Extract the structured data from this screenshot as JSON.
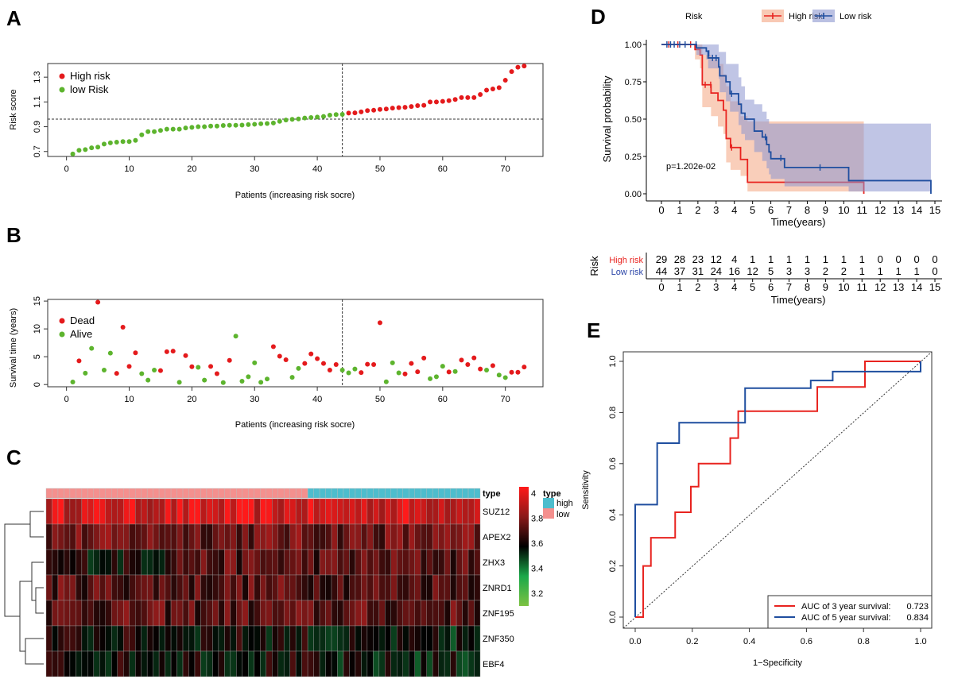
{
  "panels": {
    "a": "A",
    "b": "B",
    "c": "C",
    "d": "D",
    "e": "E"
  },
  "chart_data": [
    {
      "panel": "A",
      "type": "scatter",
      "xlabel": "Patients (increasing risk socre)",
      "ylabel": "Risk score",
      "xticks": [
        0,
        10,
        20,
        30,
        40,
        50,
        60,
        70
      ],
      "yticks": [
        0.7,
        0.9,
        1.1,
        1.3
      ],
      "xlim": [
        -3,
        76
      ],
      "ylim": [
        0.66,
        1.41
      ],
      "cutoff_patient": 44,
      "cutoff_score": 0.961,
      "legend": [
        {
          "name": "High risk",
          "color": "#e41a1c"
        },
        {
          "name": "low Risk",
          "color": "#5db42e"
        }
      ],
      "values": [
        0.68,
        0.71,
        0.715,
        0.73,
        0.735,
        0.76,
        0.77,
        0.775,
        0.78,
        0.78,
        0.79,
        0.835,
        0.86,
        0.86,
        0.87,
        0.88,
        0.88,
        0.88,
        0.89,
        0.895,
        0.9,
        0.9,
        0.905,
        0.905,
        0.91,
        0.912,
        0.912,
        0.913,
        0.917,
        0.92,
        0.924,
        0.926,
        0.93,
        0.944,
        0.954,
        0.96,
        0.963,
        0.97,
        0.974,
        0.978,
        0.983,
        0.993,
        0.998,
        1.0,
        1.01,
        1.012,
        1.02,
        1.03,
        1.033,
        1.04,
        1.043,
        1.05,
        1.054,
        1.057,
        1.063,
        1.07,
        1.073,
        1.1,
        1.1,
        1.105,
        1.11,
        1.12,
        1.135,
        1.135,
        1.135,
        1.16,
        1.195,
        1.205,
        1.215,
        1.275,
        1.345,
        1.38,
        1.39
      ]
    },
    {
      "panel": "B",
      "type": "scatter",
      "xlabel": "Patients (increasing risk socre)",
      "ylabel": "Survival time (years)",
      "xticks": [
        0,
        10,
        20,
        30,
        40,
        50,
        60,
        70
      ],
      "yticks": [
        0,
        5,
        10,
        15
      ],
      "xlim": [
        -3,
        76
      ],
      "ylim": [
        -0.4,
        15.3
      ],
      "cutoff_patient": 44,
      "legend": [
        {
          "name": "Dead",
          "color": "#e41a1c"
        },
        {
          "name": "Alive",
          "color": "#5db42e"
        }
      ],
      "values": [
        0.45,
        4.25,
        2.05,
        6.5,
        14.8,
        2.6,
        5.65,
        2.0,
        10.3,
        3.25,
        5.7,
        1.95,
        0.8,
        2.6,
        2.5,
        5.9,
        6.0,
        0.4,
        5.2,
        3.2,
        3.1,
        0.8,
        3.25,
        1.95,
        0.35,
        4.35,
        8.7,
        0.6,
        1.4,
        3.9,
        0.4,
        1.0,
        6.8,
        5.1,
        4.45,
        1.3,
        2.9,
        3.8,
        5.5,
        4.65,
        3.8,
        2.6,
        3.6,
        2.6,
        2.1,
        2.8,
        2.15,
        3.65,
        3.6,
        11.1,
        0.5,
        3.9,
        2.1,
        1.9,
        3.8,
        2.3,
        4.75,
        1.05,
        1.4,
        3.3,
        2.25,
        2.35,
        4.4,
        3.6,
        4.8,
        2.8,
        2.6,
        3.4,
        1.7,
        1.25,
        2.2,
        2.2,
        3.15
      ],
      "status": "ARAARAARRRRAAARRRARRAARRARAAAAAARRRAARRRRRRAAARRRRAAARRRRAAARARRRRARAARRR"
    },
    {
      "panel": "C",
      "type": "heatmap",
      "annotation_label": "type",
      "genes": [
        "SUZ12",
        "APEX2",
        "ZHX3",
        "ZNRD1",
        "ZNF195",
        "ZNF350",
        "EBF4"
      ],
      "approx_row_level": [
        3.95,
        3.76,
        3.72,
        3.72,
        3.72,
        3.6,
        3.6
      ],
      "groups": [
        {
          "name": "low",
          "count": 44,
          "color": "#f4908e"
        },
        {
          "name": "high",
          "count": 29,
          "color": "#4dbdcd"
        }
      ],
      "colorbar": {
        "ticks": [
          "4",
          "3.8",
          "3.6",
          "3.4",
          "3.2"
        ],
        "range": [
          3.1,
          4.05
        ],
        "colors": [
          "#7dc242",
          "#1aa84a",
          "#000000",
          "#8b1a1a",
          "#ff1a1a"
        ]
      },
      "legend_title": "type",
      "legend_items": [
        "high",
        "low"
      ]
    },
    {
      "panel": "D",
      "type": "line",
      "title": "",
      "legend_title": "Risk",
      "xlabel": "Time(years)",
      "ylabel": "Survival probability",
      "xticks": [
        0,
        1,
        2,
        3,
        4,
        5,
        6,
        7,
        8,
        9,
        10,
        11,
        12,
        13,
        14,
        15
      ],
      "yticks": [
        "0.00",
        "0.25",
        "0.50",
        "0.75",
        "1.00"
      ],
      "xlim": [
        -0.4,
        15.7
      ],
      "ylim": [
        -0.03,
        1.03
      ],
      "pvalue": "p=1.202e-02",
      "series": [
        {
          "name": "High risk",
          "color": "#e8231f",
          "fill": "#f4a582",
          "steps": [
            [
              0,
              1,
              1,
              1
            ],
            [
              1.84,
              0.966,
              0.9,
              1
            ],
            [
              2.12,
              0.93,
              0.84,
              1
            ],
            [
              2.24,
              0.73,
              0.58,
              0.93
            ],
            [
              2.72,
              0.675,
              0.52,
              0.9
            ],
            [
              3.1,
              0.625,
              0.45,
              0.87
            ],
            [
              3.4,
              0.56,
              0.4,
              0.8
            ],
            [
              3.55,
              0.37,
              0.21,
              0.72
            ],
            [
              3.79,
              0.31,
              0.16,
              0.62
            ],
            [
              4.34,
              0.23,
              0.12,
              0.52
            ],
            [
              4.72,
              0.077,
              0.015,
              0.485
            ],
            [
              11.1,
              0,
              0,
              0
            ]
          ],
          "censored": [
            [
              0.4,
              1
            ],
            [
              0.9,
              1
            ],
            [
              1.6,
              1
            ],
            [
              2.4,
              0.73
            ],
            [
              2.7,
              0.73
            ],
            [
              3.85,
              0.31
            ]
          ]
        },
        {
          "name": "Low risk",
          "color": "#1f4e9f",
          "fill": "#8c96cf",
          "steps": [
            [
              0,
              1,
              1,
              1
            ],
            [
              1.92,
              0.977,
              0.93,
              1
            ],
            [
              2.46,
              0.955,
              0.9,
              1
            ],
            [
              2.56,
              0.91,
              0.84,
              1
            ],
            [
              3.14,
              0.85,
              0.77,
              0.95
            ],
            [
              3.2,
              0.79,
              0.68,
              0.95
            ],
            [
              3.54,
              0.75,
              0.62,
              0.87
            ],
            [
              3.76,
              0.67,
              0.55,
              0.87
            ],
            [
              4.23,
              0.6,
              0.46,
              0.78
            ],
            [
              4.38,
              0.54,
              0.4,
              0.72
            ],
            [
              4.58,
              0.5,
              0.36,
              0.63
            ],
            [
              5.09,
              0.42,
              0.28,
              0.6
            ],
            [
              5.53,
              0.38,
              0.22,
              0.55
            ],
            [
              5.77,
              0.33,
              0.17,
              0.5
            ],
            [
              5.9,
              0.28,
              0.13,
              0.47
            ],
            [
              6.0,
              0.235,
              0.1,
              0.47
            ],
            [
              6.75,
              0.176,
              0.05,
              0.47
            ],
            [
              10.27,
              0.088,
              0.015,
              0.47
            ],
            [
              14.78,
              0,
              0,
              0
            ]
          ],
          "censored": [
            [
              0.3,
              1
            ],
            [
              0.5,
              1
            ],
            [
              0.7,
              1
            ],
            [
              1.0,
              1
            ],
            [
              1.3,
              1
            ],
            [
              1.9,
              1
            ],
            [
              2.6,
              0.94
            ],
            [
              2.8,
              0.91
            ],
            [
              3.0,
              0.91
            ],
            [
              3.85,
              0.67
            ],
            [
              5.7,
              0.38
            ],
            [
              6.55,
              0.24
            ],
            [
              8.7,
              0.176
            ]
          ]
        }
      ]
    },
    {
      "panel": "D-table",
      "type": "table",
      "title": "Risk",
      "xlabel": "Time(years)",
      "times": [
        0,
        1,
        2,
        3,
        4,
        5,
        6,
        7,
        8,
        9,
        10,
        11,
        12,
        13,
        14,
        15
      ],
      "rows": [
        {
          "name": "High risk",
          "color": "#e8231f",
          "values": [
            29,
            28,
            23,
            12,
            4,
            1,
            1,
            1,
            1,
            1,
            1,
            1,
            0,
            0,
            0,
            0
          ]
        },
        {
          "name": "Low risk",
          "color": "#2b45a8",
          "values": [
            44,
            37,
            31,
            24,
            16,
            12,
            5,
            3,
            3,
            2,
            2,
            1,
            1,
            1,
            1,
            0
          ]
        }
      ]
    },
    {
      "panel": "E",
      "type": "line",
      "xlabel": "1−Specificity",
      "ylabel": "Sensitivity",
      "xticks": [
        "0.0",
        "0.2",
        "0.4",
        "0.6",
        "0.8",
        "1.0"
      ],
      "yticks": [
        "0.0",
        "0.2",
        "0.4",
        "0.6",
        "0.8",
        "1.0"
      ],
      "xlim": [
        -0.04,
        1.04
      ],
      "ylim": [
        -0.04,
        1.04
      ],
      "series": [
        {
          "name": "AUC of 3 year survival:",
          "auc": "0.723",
          "color": "#e8231f",
          "points": [
            [
              0,
              0
            ],
            [
              0.028,
              0
            ],
            [
              0.028,
              0.2
            ],
            [
              0.055,
              0.2
            ],
            [
              0.055,
              0.31
            ],
            [
              0.14,
              0.31
            ],
            [
              0.14,
              0.41
            ],
            [
              0.195,
              0.41
            ],
            [
              0.195,
              0.51
            ],
            [
              0.222,
              0.51
            ],
            [
              0.222,
              0.6
            ],
            [
              0.333,
              0.6
            ],
            [
              0.333,
              0.7
            ],
            [
              0.361,
              0.7
            ],
            [
              0.361,
              0.805
            ],
            [
              0.638,
              0.805
            ],
            [
              0.638,
              0.9
            ],
            [
              0.805,
              0.9
            ],
            [
              0.805,
              1
            ],
            [
              1,
              1
            ]
          ]
        },
        {
          "name": "AUC of 5 year survival:",
          "auc": "0.834",
          "color": "#1f4e9f",
          "points": [
            [
              0,
              0
            ],
            [
              0,
              0.44
            ],
            [
              0.077,
              0.44
            ],
            [
              0.077,
              0.68
            ],
            [
              0.154,
              0.68
            ],
            [
              0.154,
              0.76
            ],
            [
              0.385,
              0.76
            ],
            [
              0.385,
              0.895
            ],
            [
              0.615,
              0.895
            ],
            [
              0.615,
              0.925
            ],
            [
              0.692,
              0.925
            ],
            [
              0.692,
              0.96
            ],
            [
              1,
              0.96
            ],
            [
              1,
              1
            ]
          ]
        }
      ]
    }
  ]
}
